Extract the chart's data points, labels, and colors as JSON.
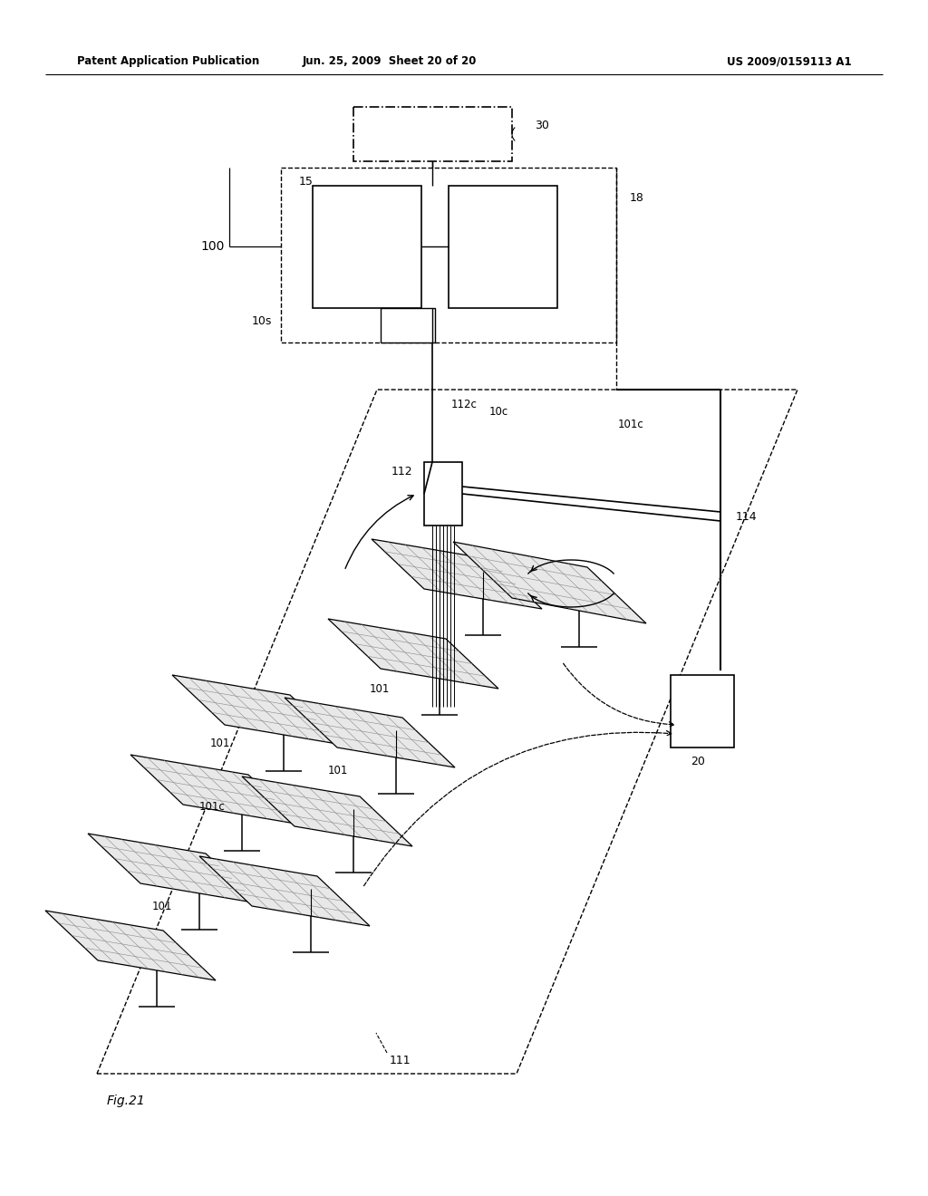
{
  "bg_color": "#ffffff",
  "lc": "#000000",
  "header_left": "Patent Application Publication",
  "header_mid": "Jun. 25, 2009  Sheet 20 of 20",
  "header_right": "US 2009/0159113 A1",
  "fig_label": "Fig.21"
}
